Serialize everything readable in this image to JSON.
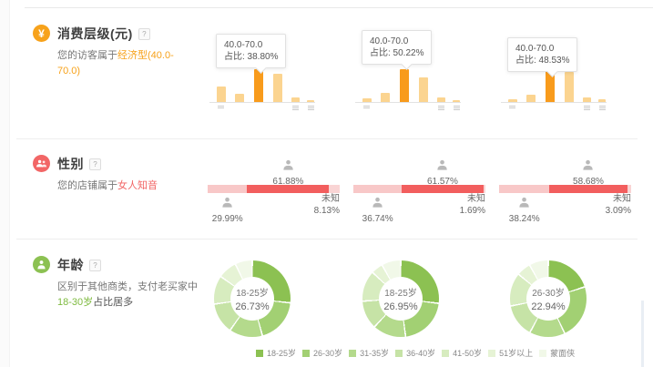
{
  "page": {
    "background": "#ffffff",
    "divider_color": "#eeeeee"
  },
  "consumption": {
    "title": "消费层级(元)",
    "help": "?",
    "desc_prefix": "您的访客属于",
    "desc_highlight": "经济型(40.0-70.0)",
    "accent": "#f7a21b",
    "bar_color": "#fbd490",
    "bar_highlight": "#f89b1c",
    "tooltip_label": "占比:",
    "charts": [
      {
        "range": "40.0-70.0",
        "share": "38.80%",
        "bars_rel": [
          47,
          24,
          100,
          85,
          15,
          6
        ],
        "highlight_index": 2
      },
      {
        "range": "40.0-70.0",
        "share": "50.22%",
        "bars_rel": [
          11,
          27,
          100,
          76,
          14,
          5
        ],
        "highlight_index": 2
      },
      {
        "range": "40.0-70.0",
        "share": "48.53%",
        "bars_rel": [
          9,
          21,
          100,
          91,
          15,
          9
        ],
        "highlight_index": 2
      }
    ]
  },
  "gender": {
    "title": "性别",
    "help": "?",
    "desc_prefix": "您的店铺属于",
    "desc_highlight": "女人知音",
    "accent": "#f26666",
    "female_color": "#f25e5e",
    "male_color": "#f8c8c8",
    "unknown_color": "#f9d4d4",
    "unknown_label": "未知",
    "charts": [
      {
        "male": 29.99,
        "female": 61.88,
        "unknown": 8.13,
        "male_label": "29.99%",
        "female_label": "61.88%",
        "unknown_value": "8.13%"
      },
      {
        "male": 36.74,
        "female": 61.57,
        "unknown": 1.69,
        "male_label": "36.74%",
        "female_label": "61.57%",
        "unknown_value": "1.69%"
      },
      {
        "male": 38.24,
        "female": 58.68,
        "unknown": 3.09,
        "male_label": "38.24%",
        "female_label": "58.68%",
        "unknown_value": "3.09%"
      }
    ]
  },
  "age": {
    "title": "年龄",
    "help": "?",
    "desc_line": "区别于其他商类，支付老买家中",
    "desc_highlight": "18-30岁",
    "desc_suffix": "占比居多",
    "accent": "#8cc152",
    "colors": [
      "#8cc152",
      "#a2d073",
      "#b4da8c",
      "#c6e3a6",
      "#d7ecbf",
      "#e6f3d5",
      "#f1f8e8"
    ],
    "charts": [
      {
        "center_label": "18-25岁",
        "center_value": "26.73%",
        "segments": [
          26.73,
          19,
          14,
          13,
          12,
          8,
          7.27
        ]
      },
      {
        "center_label": "18-25岁",
        "center_value": "26.95%",
        "segments": [
          26.95,
          21,
          14,
          12,
          13,
          5,
          8.05
        ]
      },
      {
        "center_label": "26-30岁",
        "center_value": "22.94%",
        "segments": [
          20,
          22.94,
          15,
          14,
          14,
          6,
          8.06
        ]
      }
    ],
    "legend": [
      "18-25岁",
      "26-30岁",
      "31-35岁",
      "36-40岁",
      "41-50岁",
      "51岁以上",
      "蒙面侠"
    ]
  },
  "chart_data": [
    {
      "type": "bar",
      "title": "消费层级(元)",
      "note": "three mini bar charts; only hovered bin labeled via tooltip",
      "panels": [
        {
          "highlight_bin": "40.0-70.0",
          "highlight_share_pct": 38.8,
          "bar_heights_rel_pct_of_max": [
            47,
            24,
            100,
            85,
            15,
            6
          ]
        },
        {
          "highlight_bin": "40.0-70.0",
          "highlight_share_pct": 50.22,
          "bar_heights_rel_pct_of_max": [
            11,
            27,
            100,
            76,
            14,
            5
          ]
        },
        {
          "highlight_bin": "40.0-70.0",
          "highlight_share_pct": 48.53,
          "bar_heights_rel_pct_of_max": [
            9,
            21,
            100,
            91,
            15,
            9
          ]
        }
      ]
    },
    {
      "type": "bar",
      "subtype": "stacked-horizontal",
      "title": "性别",
      "segments": [
        "male",
        "female",
        "未知"
      ],
      "panels": [
        {
          "male_pct": 29.99,
          "female_pct": 61.88,
          "unknown_pct": 8.13
        },
        {
          "male_pct": 36.74,
          "female_pct": 61.57,
          "unknown_pct": 1.69
        },
        {
          "male_pct": 38.24,
          "female_pct": 58.68,
          "unknown_pct": 3.09
        }
      ]
    },
    {
      "type": "pie",
      "subtype": "donut",
      "title": "年龄",
      "categories": [
        "18-25岁",
        "26-30岁",
        "31-35岁",
        "36-40岁",
        "41-50岁",
        "51岁以上",
        "蒙面侠"
      ],
      "legend_position": "bottom",
      "panels": [
        {
          "center_label": "18-25岁",
          "center_value_pct": 26.73,
          "segments_pct_estimated": [
            26.73,
            19,
            14,
            13,
            12,
            8,
            7.27
          ]
        },
        {
          "center_label": "18-25岁",
          "center_value_pct": 26.95,
          "segments_pct_estimated": [
            26.95,
            21,
            14,
            12,
            13,
            5,
            8.05
          ]
        },
        {
          "center_label": "26-30岁",
          "center_value_pct": 22.94,
          "segments_pct_estimated": [
            20,
            22.94,
            15,
            14,
            14,
            6,
            8.06
          ]
        }
      ]
    }
  ]
}
